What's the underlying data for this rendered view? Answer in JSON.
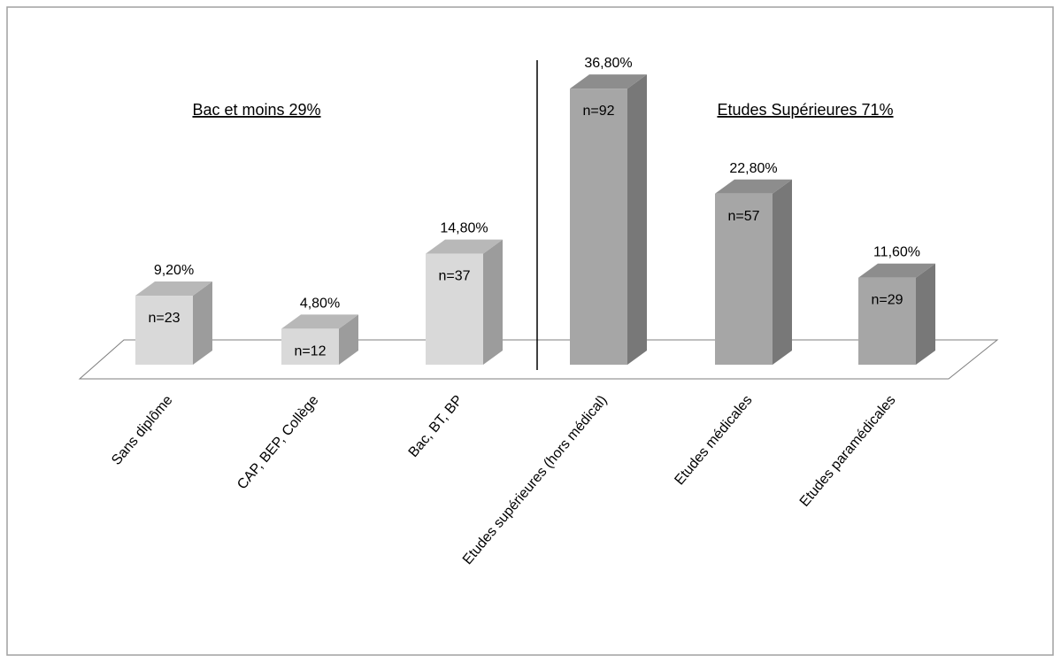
{
  "chart_data": {
    "type": "bar3d",
    "categories": [
      "Sans diplôme",
      "CAP, BEP, Collège",
      "Bac, BT, BP",
      "Etudes supérieures (hors médical)",
      "Etudes médicales",
      "Etudes paramédicales"
    ],
    "values": [
      9.2,
      4.8,
      14.8,
      36.8,
      22.8,
      11.6
    ],
    "value_labels": [
      "9,20%",
      "4,80%",
      "14,80%",
      "36,80%",
      "22,80%",
      "11,60%"
    ],
    "n_labels": [
      "n=23",
      "n=12",
      "n=37",
      "n=92",
      "n=57",
      "n=29"
    ],
    "colors": [
      "#d9d9d9",
      "#d9d9d9",
      "#d9d9d9",
      "#a6a6a6",
      "#a6a6a6",
      "#a6a6a6"
    ],
    "annotations": [
      "Bac et  moins 29%",
      "Etudes Supérieures 71%"
    ],
    "ylim": [
      0,
      40
    ]
  }
}
